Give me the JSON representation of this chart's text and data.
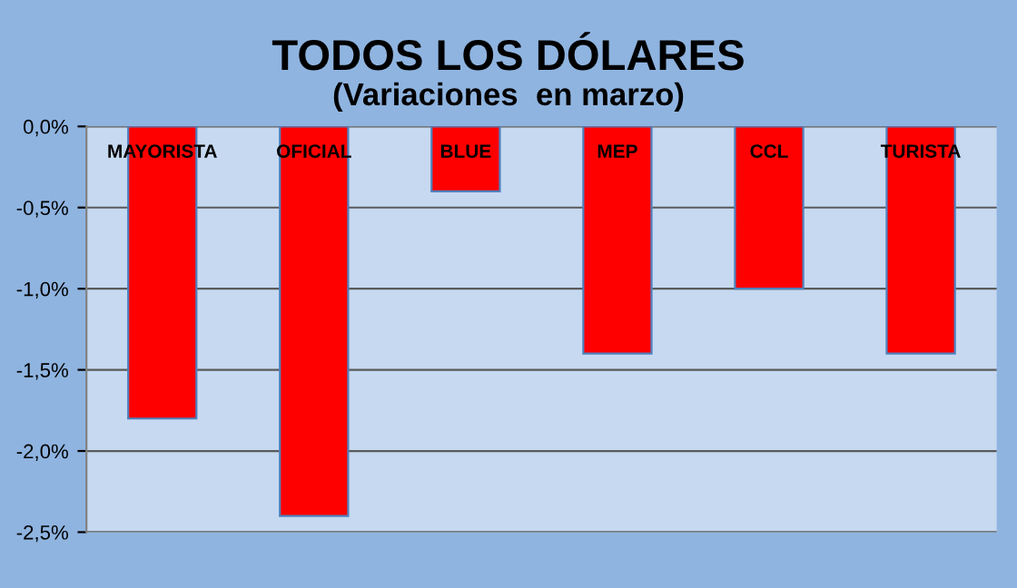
{
  "chart_data": {
    "type": "bar",
    "title": "TODOS LOS DÓLARES",
    "subtitle": "(Variaciones  en marzo)",
    "categories": [
      "MAYORISTA",
      "OFICIAL",
      "BLUE",
      "MEP",
      "CCL",
      "TURISTA"
    ],
    "values": [
      -1.8,
      -2.4,
      -0.4,
      -1.4,
      -1.0,
      -1.4
    ],
    "color": "#ff0000",
    "ylim": [
      -2.5,
      0
    ],
    "yticks": [
      {
        "value": -2.5,
        "label": "-2,5%"
      },
      {
        "value": -2.0,
        "label": "-2,0%"
      },
      {
        "value": -1.5,
        "label": "-1,5%"
      },
      {
        "value": -1.0,
        "label": "-1,0%"
      },
      {
        "value": -0.5,
        "label": "-0,5%"
      },
      {
        "value": 0,
        "label": "0,0%"
      }
    ],
    "grid": "y"
  }
}
